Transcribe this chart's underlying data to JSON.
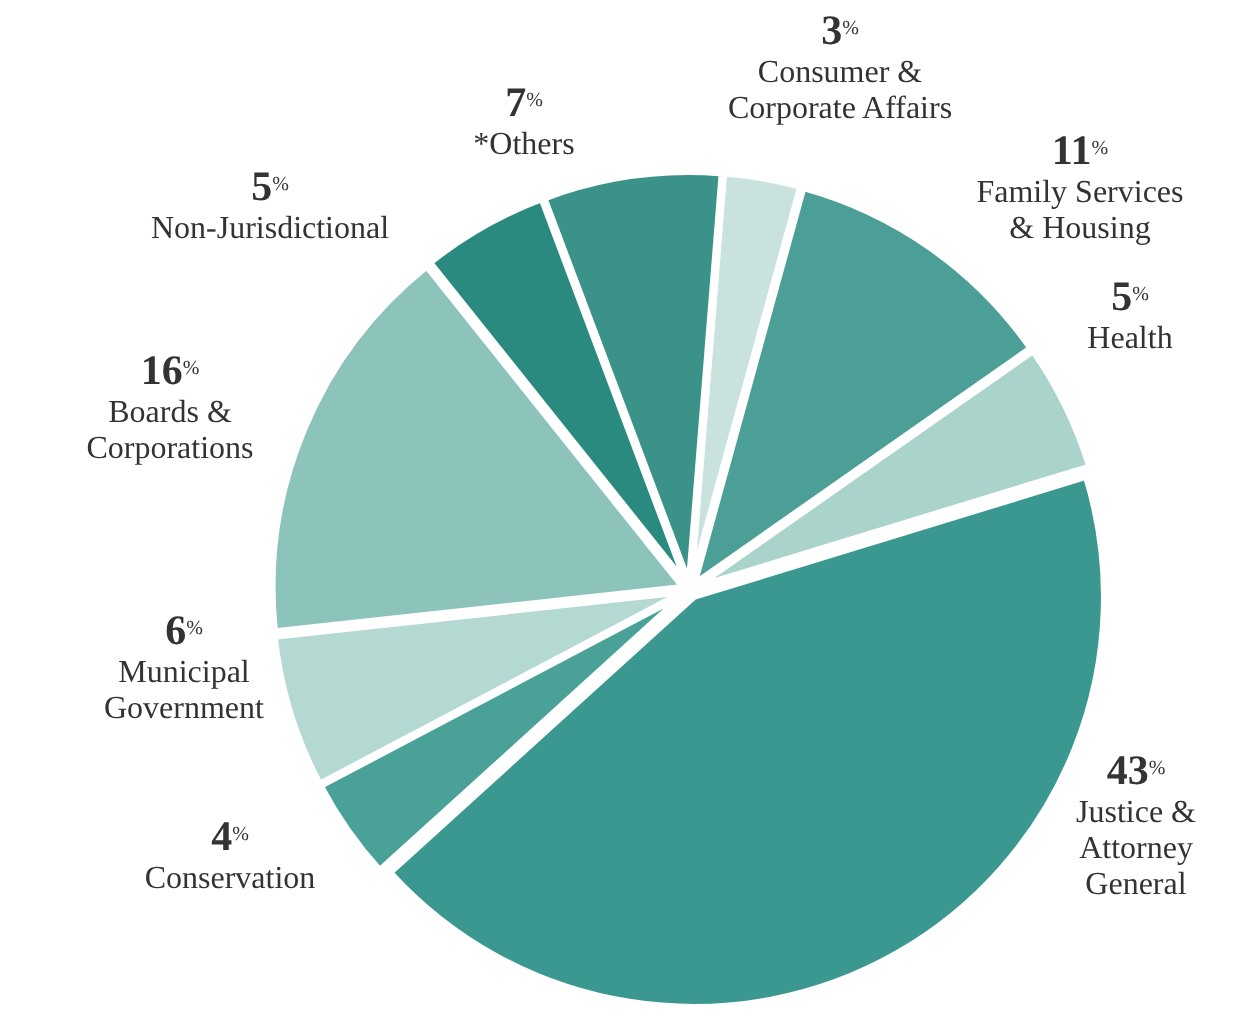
{
  "chart_data": {
    "type": "pie",
    "categories": [
      "Consumer & Corporate Affairs",
      "Family Services & Housing",
      "Health",
      "Justice & Attorney General",
      "Conservation",
      "Municipal Government",
      "Boards & Corporations",
      "Non-Jurisdictional",
      "*Others"
    ],
    "values": [
      3,
      11,
      5,
      43,
      4,
      6,
      16,
      5,
      7
    ],
    "value_labels": [
      "3$^{%}$",
      "11$^{%}$",
      "5$^{%}$",
      "43$^{%}$",
      "4$^{%}$",
      "6$^{%}$",
      "16$^{%}$",
      "5$^{%}$",
      "7$^{%}$"
    ],
    "colors": [
      "#c9e2dd",
      "#4c9f97",
      "#a9d3cb",
      "#3a9890",
      "#4aa198",
      "#b3d9d2",
      "#8cc3bb",
      "#2b8a80",
      "#3a9289"
    ]
  }
}
